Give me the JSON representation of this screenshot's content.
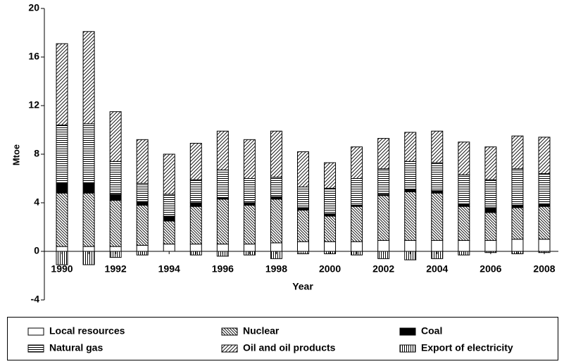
{
  "chart_data": {
    "type": "stacked-bar",
    "x_label": "Year",
    "y_label": "Mtoe",
    "categories": [
      "1990",
      null,
      "1992",
      null,
      "1994",
      null,
      "1996",
      null,
      "1998",
      null,
      "2000",
      null,
      "2002",
      null,
      "2004",
      null,
      "2006",
      null,
      "2008"
    ],
    "series": [
      {
        "name": "Local resources",
        "color": "#000000",
        "values": [
          0.4,
          0.4,
          0.4,
          0.5,
          0.6,
          0.6,
          0.6,
          0.6,
          0.7,
          0.8,
          0.8,
          0.8,
          0.9,
          0.9,
          0.9,
          0.9,
          0.9,
          1.0,
          1.0
        ]
      },
      {
        "name": "Nuclear",
        "color": "#000000",
        "values": [
          4.4,
          4.4,
          3.8,
          3.3,
          1.9,
          3.1,
          3.7,
          3.2,
          3.6,
          2.6,
          2.1,
          2.9,
          3.7,
          4.0,
          3.9,
          2.8,
          2.3,
          2.6,
          2.7
        ]
      },
      {
        "name": "Coal",
        "color": "#000000",
        "values": [
          0.8,
          0.8,
          0.5,
          0.3,
          0.4,
          0.3,
          0.1,
          0.2,
          0.2,
          0.2,
          0.2,
          0.1,
          0.1,
          0.2,
          0.2,
          0.2,
          0.4,
          0.2,
          0.2
        ]
      },
      {
        "name": "Natural gas",
        "color": "#000000",
        "values": [
          4.8,
          4.9,
          2.7,
          1.5,
          1.8,
          1.9,
          2.3,
          2.0,
          1.6,
          1.7,
          2.1,
          2.2,
          2.1,
          2.3,
          2.3,
          2.4,
          2.3,
          3.0,
          2.5
        ]
      },
      {
        "name": "Oil and oil products",
        "color": "#000000",
        "values": [
          6.7,
          7.6,
          4.1,
          3.6,
          3.3,
          3.0,
          3.2,
          3.2,
          3.8,
          2.9,
          2.1,
          2.6,
          2.5,
          2.4,
          2.6,
          2.7,
          2.7,
          2.7,
          3.0
        ]
      },
      {
        "name": "Export of electricity",
        "color": "#000000",
        "values": [
          -1.1,
          -1.1,
          -0.5,
          -0.3,
          0,
          -0.3,
          -0.4,
          -0.3,
          -0.6,
          -0.2,
          -0.2,
          -0.3,
          -0.6,
          -0.7,
          -0.6,
          -0.3,
          -0.1,
          -0.2,
          -0.1
        ]
      }
    ],
    "ylim": [
      -4,
      20
    ],
    "yticks": [
      -4,
      0,
      4,
      8,
      12,
      16,
      20
    ],
    "grid": false
  }
}
